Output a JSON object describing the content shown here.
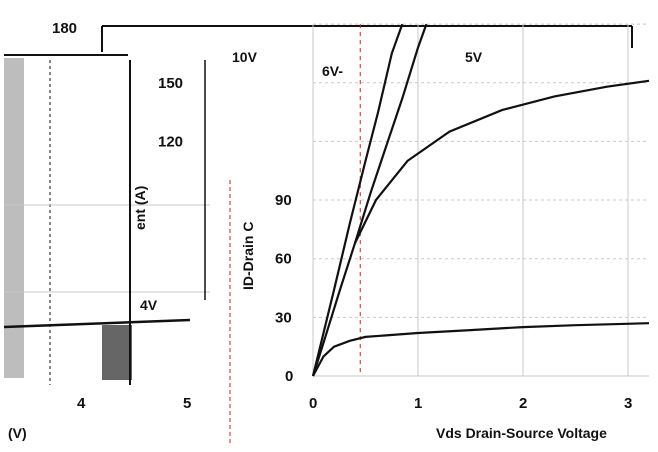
{
  "chart_data": [
    {
      "type": "line",
      "title": "",
      "xlabel": "Vds Drain-Source Voltage",
      "ylabel": "ID-Drain Current (A)",
      "x_ticks": [
        "0",
        "1",
        "2",
        "3"
      ],
      "y_ticks": [
        "0",
        "30",
        "60",
        "90",
        "120",
        "150",
        "180"
      ],
      "xlim": [
        0,
        3.2
      ],
      "ylim": [
        0,
        180
      ],
      "grid": true,
      "series": [
        {
          "name": "10V",
          "label_text": "10V",
          "points": [
            [
              0.0,
              0
            ],
            [
              0.1,
              22
            ],
            [
              0.2,
              44
            ],
            [
              0.35,
              78
            ],
            [
              0.5,
              110
            ],
            [
              0.62,
              135
            ],
            [
              0.75,
              165
            ],
            [
              0.85,
              180
            ]
          ]
        },
        {
          "name": "6V",
          "label_text": "6V",
          "points": [
            [
              0.0,
              0
            ],
            [
              0.1,
              17
            ],
            [
              0.25,
              43
            ],
            [
              0.4,
              68
            ],
            [
              0.55,
              94
            ],
            [
              0.7,
              118
            ],
            [
              0.85,
              142
            ],
            [
              1.0,
              168
            ],
            [
              1.08,
              180
            ]
          ]
        },
        {
          "name": "5V",
          "label_text": "5V",
          "points": [
            [
              0.4,
              68
            ],
            [
              0.6,
              90
            ],
            [
              0.9,
              110
            ],
            [
              1.3,
              125
            ],
            [
              1.8,
              136
            ],
            [
              2.3,
              143
            ],
            [
              2.8,
              148
            ],
            [
              3.2,
              151
            ]
          ]
        },
        {
          "name": "4V",
          "label_text": "4V",
          "points": [
            [
              0.0,
              0
            ],
            [
              0.1,
              10
            ],
            [
              0.2,
              15
            ],
            [
              0.35,
              18
            ],
            [
              0.5,
              20
            ],
            [
              1.0,
              22
            ],
            [
              1.5,
              23.5
            ],
            [
              2.0,
              25
            ],
            [
              2.5,
              26
            ],
            [
              3.2,
              27
            ]
          ]
        }
      ]
    },
    {
      "type": "line",
      "title": "",
      "xlabel": "(V)",
      "ylabel": "",
      "x_ticks": [
        "4",
        "5"
      ],
      "partial": true,
      "series": []
    }
  ],
  "axis_labels": {
    "y_top": "180",
    "ylabel_fragment": "ent (A)",
    "ylabel_inner": "ID-Drain C",
    "x_left": "(V)",
    "x_right": "Vds Drain-Source Voltage"
  },
  "curve_labels": {
    "v10": "10V",
    "v6": "6V-",
    "v5": "5V",
    "v4": "4V"
  },
  "colors": {
    "curve": "#111111",
    "grid": "#c8c8c8",
    "dashed": "#cc2222",
    "frame": "#111111"
  }
}
